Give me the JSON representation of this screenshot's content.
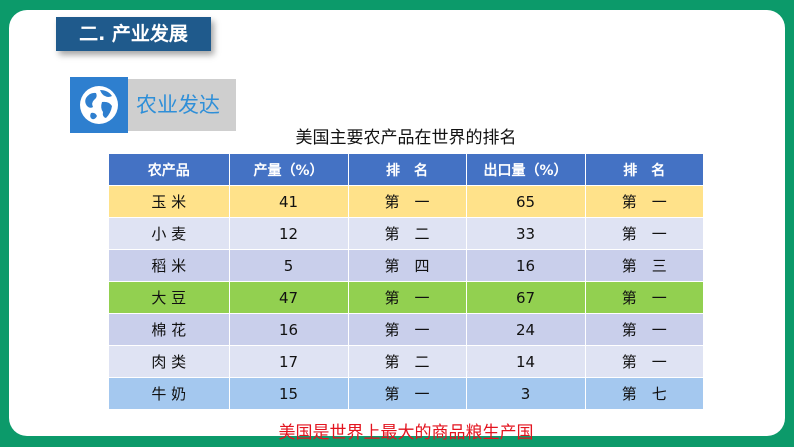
{
  "section": {
    "title": "二. 产业发展"
  },
  "subheading": {
    "label": "农业发达",
    "icon": "globe-icon"
  },
  "table": {
    "caption": "美国主要农产品在世界的排名",
    "headers": [
      "农产品",
      "产量（%）",
      "排　名",
      "出口量（%）",
      "排　名"
    ],
    "rows": [
      {
        "style": "yellow",
        "cells": [
          "玉 米",
          "41",
          "第　一",
          "65",
          "第　一"
        ]
      },
      {
        "style": "lavender",
        "cells": [
          "小 麦",
          "12",
          "第　二",
          "33",
          "第　一"
        ]
      },
      {
        "style": "periwinkle",
        "cells": [
          "稻 米",
          "5",
          "第　四",
          "16",
          "第　三"
        ]
      },
      {
        "style": "green",
        "cells": [
          "大 豆",
          "47",
          "第　一",
          "67",
          "第　一"
        ]
      },
      {
        "style": "periwinkle",
        "cells": [
          "棉 花",
          "16",
          "第　一",
          "24",
          "第　一"
        ]
      },
      {
        "style": "lavender",
        "cells": [
          "肉 类",
          "17",
          "第　二",
          "14",
          "第　一"
        ]
      },
      {
        "style": "skyblue",
        "cells": [
          "牛 奶",
          "15",
          "第　一",
          "3",
          "第　七"
        ]
      }
    ]
  },
  "footnote": "美国是世界上最大的商品粮生产国",
  "colors": {
    "frame": "#0c9a6a",
    "section_bg": "#1f5a8c",
    "header_bg": "#4472c4",
    "footnote": "#e3131e"
  }
}
